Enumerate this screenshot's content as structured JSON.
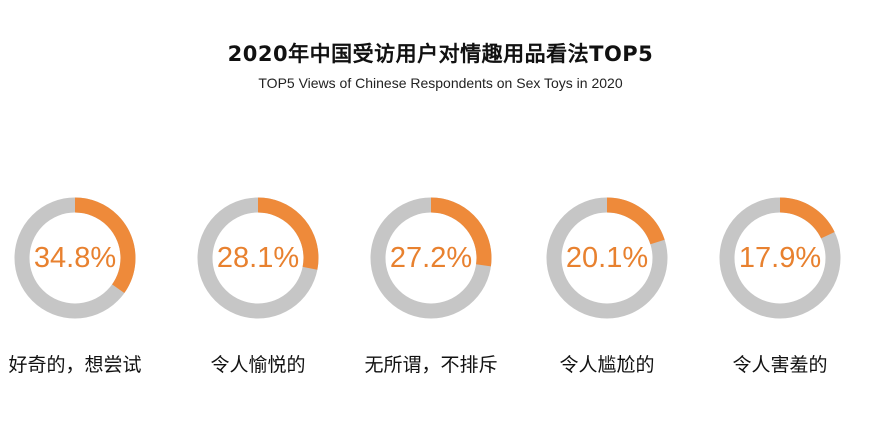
{
  "title": "2020年中国受访用户对情趣用品看法TOP5",
  "subtitle": "TOP5 Views of Chinese Respondents on Sex Toys in 2020",
  "colors": {
    "accent": "#ee8a3a",
    "track": "#c6c6c6",
    "percent_text": "#e8812f"
  },
  "chart_data": {
    "type": "pie",
    "title": "2020年中国受访用户对情趣用品看法TOP5",
    "subtitle": "TOP5 Views of Chinese Respondents on Sex Toys in 2020",
    "items": [
      {
        "label": "好奇的，想尝试",
        "value": 34.8,
        "display": "34.8%"
      },
      {
        "label": "令人愉悦的",
        "value": 28.1,
        "display": "28.1%"
      },
      {
        "label": "无所谓，不排斥",
        "value": 27.2,
        "display": "27.2%"
      },
      {
        "label": "令人尴尬的",
        "value": 20.1,
        "display": "20.1%"
      },
      {
        "label": "令人害羞的",
        "value": 17.9,
        "display": "17.9%"
      }
    ]
  }
}
